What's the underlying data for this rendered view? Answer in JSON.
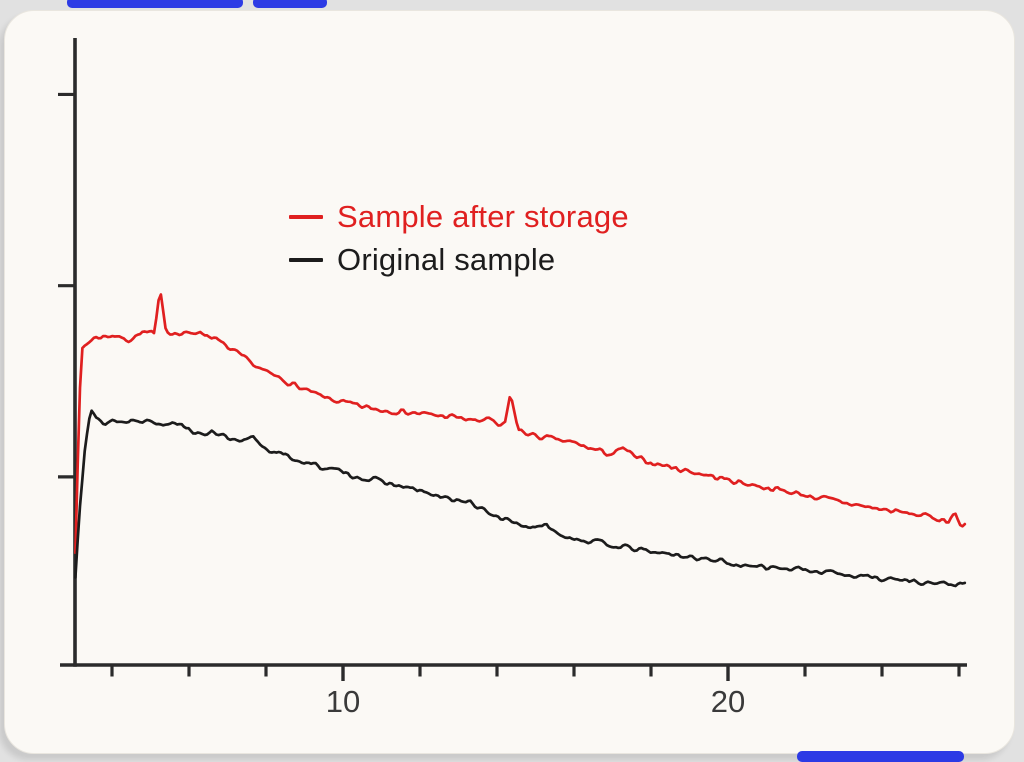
{
  "page": {
    "background_color": "#e1e1e1",
    "card_background_color": "#fbf9f5",
    "accent_bar_color": "#2c3ae5"
  },
  "chart_data": {
    "type": "line",
    "title": "",
    "xlabel": "",
    "ylabel": "",
    "grid": false,
    "x_range": [
      3.05,
      26.2
    ],
    "ylim_arbitrary_units": [
      0,
      100
    ],
    "x_ticks": {
      "minor_step": 2,
      "minor_values": [
        4,
        6,
        8,
        12,
        14,
        16,
        18,
        22,
        24,
        26
      ],
      "labeled": [
        {
          "value": 10,
          "label": "10"
        },
        {
          "value": 20,
          "label": "20"
        }
      ]
    },
    "y_ticks": {
      "positions_fraction_of_axis": [
        0.91,
        0.605,
        0.3
      ],
      "labels_shown": false
    },
    "legend": {
      "position": "upper-center-left"
    },
    "axis_color": "#2b2b2b",
    "series": [
      {
        "name": "Sample after storage",
        "color": "#e02020",
        "noise_amplitude": 0.6,
        "anchors": [
          [
            3.05,
            18
          ],
          [
            3.1,
            30
          ],
          [
            3.2,
            50.5
          ],
          [
            3.5,
            52.3
          ],
          [
            4.0,
            52.8
          ],
          [
            4.4,
            52.0
          ],
          [
            4.8,
            53.2
          ],
          [
            5.1,
            53.0
          ],
          [
            5.25,
            60.3
          ],
          [
            5.4,
            53.5
          ],
          [
            5.8,
            52.8
          ],
          [
            6.2,
            53.4
          ],
          [
            6.6,
            52.5
          ],
          [
            7.0,
            50.8
          ],
          [
            7.5,
            48.8
          ],
          [
            8.0,
            46.8
          ],
          [
            8.5,
            45.5
          ],
          [
            9.0,
            44.0
          ],
          [
            9.5,
            42.8
          ],
          [
            10.0,
            42.0
          ],
          [
            10.5,
            41.3
          ],
          [
            11.0,
            40.8
          ],
          [
            11.5,
            40.6
          ],
          [
            12.0,
            40.2
          ],
          [
            12.5,
            39.9
          ],
          [
            13.0,
            39.6
          ],
          [
            13.5,
            38.9
          ],
          [
            13.75,
            39.6
          ],
          [
            14.0,
            38.2
          ],
          [
            14.2,
            38.5
          ],
          [
            14.35,
            43.5
          ],
          [
            14.55,
            37.6
          ],
          [
            15.0,
            36.6
          ],
          [
            15.5,
            36.1
          ],
          [
            16.0,
            35.5
          ],
          [
            16.5,
            34.5
          ],
          [
            17.0,
            33.7
          ],
          [
            17.3,
            34.7
          ],
          [
            17.6,
            33.1
          ],
          [
            18.0,
            32.4
          ],
          [
            18.5,
            31.7
          ],
          [
            19.0,
            31.0
          ],
          [
            19.5,
            30.3
          ],
          [
            20.0,
            29.6
          ],
          [
            20.5,
            29.0
          ],
          [
            21.0,
            28.4
          ],
          [
            21.5,
            27.8
          ],
          [
            22.0,
            27.2
          ],
          [
            22.5,
            26.6
          ],
          [
            23.0,
            26.0
          ],
          [
            23.5,
            25.4
          ],
          [
            24.0,
            24.9
          ],
          [
            24.5,
            24.4
          ],
          [
            25.0,
            24.0
          ],
          [
            25.4,
            23.5
          ],
          [
            25.7,
            23.0
          ],
          [
            25.9,
            24.4
          ],
          [
            26.05,
            21.9
          ],
          [
            26.2,
            22.9
          ]
        ]
      },
      {
        "name": "Original sample",
        "color": "#1c1c1c",
        "noise_amplitude": 0.55,
        "anchors": [
          [
            3.05,
            14
          ],
          [
            3.15,
            24
          ],
          [
            3.3,
            35
          ],
          [
            3.45,
            41.1
          ],
          [
            3.6,
            39.3
          ],
          [
            3.8,
            38.6
          ],
          [
            4.0,
            39.2
          ],
          [
            4.3,
            38.8
          ],
          [
            4.6,
            39.4
          ],
          [
            5.0,
            39.0
          ],
          [
            5.3,
            38.5
          ],
          [
            5.6,
            39.1
          ],
          [
            6.0,
            37.9
          ],
          [
            6.3,
            36.6
          ],
          [
            6.6,
            37.6
          ],
          [
            7.0,
            36.2
          ],
          [
            7.35,
            35.5
          ],
          [
            7.66,
            36.5
          ],
          [
            8.0,
            34.6
          ],
          [
            8.5,
            33.5
          ],
          [
            9.0,
            32.4
          ],
          [
            9.5,
            31.6
          ],
          [
            10.0,
            30.8
          ],
          [
            10.5,
            29.9
          ],
          [
            11.0,
            29.4
          ],
          [
            11.5,
            28.5
          ],
          [
            12.0,
            27.9
          ],
          [
            12.5,
            26.8
          ],
          [
            13.0,
            26.4
          ],
          [
            13.3,
            26.0
          ],
          [
            13.6,
            24.8
          ],
          [
            14.0,
            23.8
          ],
          [
            14.5,
            22.7
          ],
          [
            15.0,
            21.8
          ],
          [
            15.3,
            22.4
          ],
          [
            15.6,
            21.0
          ],
          [
            16.0,
            20.3
          ],
          [
            16.5,
            19.7
          ],
          [
            17.0,
            19.2
          ],
          [
            17.5,
            18.6
          ],
          [
            18.0,
            18.1
          ],
          [
            18.5,
            17.7
          ],
          [
            19.0,
            17.3
          ],
          [
            19.5,
            16.9
          ],
          [
            20.0,
            16.5
          ],
          [
            20.3,
            15.6
          ],
          [
            20.7,
            16.2
          ],
          [
            21.0,
            15.7
          ],
          [
            21.5,
            15.4
          ],
          [
            22.0,
            15.2
          ],
          [
            22.3,
            14.6
          ],
          [
            22.7,
            15.3
          ],
          [
            23.0,
            14.4
          ],
          [
            23.5,
            14.2
          ],
          [
            24.0,
            13.9
          ],
          [
            24.5,
            13.6
          ],
          [
            25.0,
            13.3
          ],
          [
            25.5,
            13.0
          ],
          [
            26.2,
            12.8
          ]
        ]
      }
    ]
  }
}
